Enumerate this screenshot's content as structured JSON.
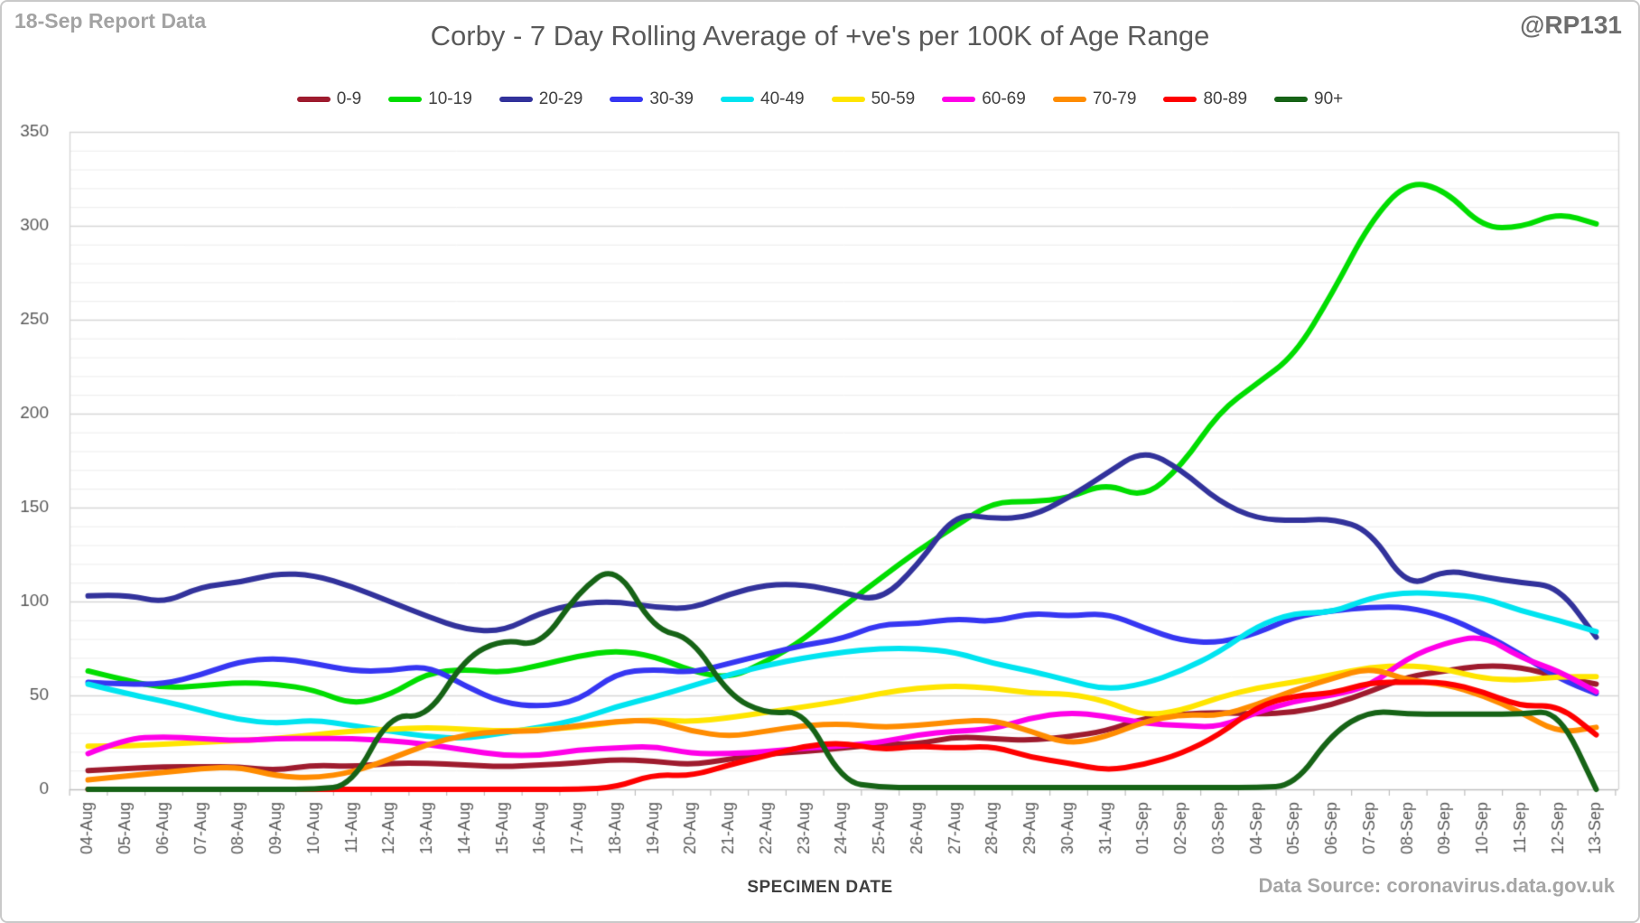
{
  "header": {
    "report_note": "18-Sep Report Data",
    "title": "Corby - 7 Day Rolling Average of +ve's per 100K of Age Range",
    "handle": "@RP131"
  },
  "footer": {
    "xaxis_title": "SPECIMEN DATE",
    "data_source": "Data Source: coronavirus.data.gov.uk"
  },
  "chart_data": {
    "type": "line",
    "title": "Corby - 7 Day Rolling Average of +ve's per 100K of Age Range",
    "xlabel": "SPECIMEN DATE",
    "ylabel": "",
    "ylim": [
      0,
      350
    ],
    "ytick_step": 50,
    "minor_grid_step": 10,
    "grid": true,
    "legend_position": "top",
    "categories": [
      "04-Aug",
      "05-Aug",
      "06-Aug",
      "07-Aug",
      "08-Aug",
      "09-Aug",
      "10-Aug",
      "11-Aug",
      "12-Aug",
      "13-Aug",
      "14-Aug",
      "15-Aug",
      "16-Aug",
      "17-Aug",
      "18-Aug",
      "19-Aug",
      "20-Aug",
      "21-Aug",
      "22-Aug",
      "23-Aug",
      "24-Aug",
      "25-Aug",
      "26-Aug",
      "27-Aug",
      "28-Aug",
      "29-Aug",
      "30-Aug",
      "31-Aug",
      "01-Sep",
      "02-Sep",
      "03-Sep",
      "04-Sep",
      "05-Sep",
      "06-Sep",
      "07-Sep",
      "08-Sep",
      "09-Sep",
      "10-Sep",
      "11-Sep",
      "12-Sep",
      "13-Sep"
    ],
    "series": [
      {
        "name": "0-9",
        "color": "#9e1b2e",
        "values": [
          10,
          11,
          12,
          12,
          12,
          10,
          13,
          12,
          14,
          14,
          13,
          12,
          13,
          14,
          16,
          15,
          13,
          16,
          19,
          20,
          22,
          24,
          24,
          28,
          27,
          26,
          28,
          31,
          38,
          40,
          41,
          40,
          41,
          45,
          52,
          60,
          63,
          66,
          65,
          60,
          56
        ]
      },
      {
        "name": "10-19",
        "color": "#00dd00",
        "values": [
          63,
          58,
          54,
          55,
          57,
          56,
          53,
          45,
          50,
          62,
          64,
          62,
          66,
          71,
          74,
          71,
          63,
          59,
          68,
          80,
          97,
          112,
          127,
          140,
          153,
          153,
          155,
          163,
          155,
          172,
          201,
          216,
          231,
          264,
          302,
          324,
          319,
          299,
          299,
          307,
          301
        ]
      },
      {
        "name": "20-29",
        "color": "#32329b",
        "values": [
          103,
          104,
          99,
          108,
          110,
          115,
          114,
          108,
          100,
          92,
          85,
          84,
          94,
          99,
          100,
          97,
          96,
          104,
          109,
          109,
          105,
          100,
          119,
          147,
          144,
          145,
          155,
          168,
          181,
          170,
          153,
          144,
          143,
          144,
          138,
          107,
          117,
          113,
          110,
          108,
          81
        ]
      },
      {
        "name": "30-39",
        "color": "#3636f2",
        "values": [
          57,
          56,
          56,
          61,
          68,
          70,
          67,
          63,
          63,
          66,
          55,
          46,
          44,
          47,
          62,
          64,
          62,
          67,
          72,
          77,
          80,
          88,
          88,
          91,
          89,
          94,
          92,
          94,
          86,
          79,
          78,
          83,
          92,
          95,
          97,
          97,
          92,
          83,
          72,
          59,
          51
        ]
      },
      {
        "name": "40-49",
        "color": "#00e4f0",
        "values": [
          56,
          51,
          47,
          42,
          37,
          35,
          37,
          34,
          31,
          28,
          27,
          30,
          33,
          37,
          44,
          49,
          55,
          61,
          66,
          70,
          73,
          75,
          75,
          73,
          67,
          63,
          58,
          53,
          56,
          63,
          73,
          87,
          94,
          94,
          102,
          105,
          104,
          102,
          95,
          90,
          84
        ]
      },
      {
        "name": "50-59",
        "color": "#ffe500",
        "values": [
          23,
          23,
          24,
          25,
          26,
          27,
          29,
          31,
          32,
          33,
          32,
          31,
          32,
          33,
          36,
          37,
          36,
          38,
          41,
          44,
          47,
          51,
          54,
          55,
          54,
          51,
          51,
          47,
          39,
          42,
          49,
          54,
          57,
          61,
          65,
          66,
          64,
          59,
          58,
          60,
          60
        ]
      },
      {
        "name": "60-69",
        "color": "#ff00e8",
        "values": [
          19,
          27,
          28,
          27,
          26,
          27,
          27,
          27,
          26,
          24,
          21,
          18,
          18,
          21,
          22,
          23,
          19,
          19,
          20,
          22,
          23,
          25,
          29,
          31,
          32,
          38,
          41,
          39,
          35,
          34,
          33,
          41,
          47,
          50,
          55,
          70,
          78,
          82,
          70,
          63,
          52
        ]
      },
      {
        "name": "70-79",
        "color": "#ff8c00",
        "values": [
          5,
          7,
          9,
          11,
          12,
          7,
          6,
          9,
          16,
          24,
          29,
          31,
          31,
          34,
          36,
          37,
          31,
          28,
          31,
          34,
          35,
          33,
          34,
          36,
          37,
          31,
          24,
          28,
          36,
          40,
          39,
          45,
          53,
          59,
          65,
          58,
          56,
          50,
          41,
          30,
          33
        ]
      },
      {
        "name": "80-89",
        "color": "#fe0000",
        "values": [
          0,
          0,
          0,
          0,
          0,
          0,
          0,
          0,
          0,
          0,
          0,
          0,
          0,
          0,
          1,
          8,
          7,
          13,
          18,
          23,
          25,
          21,
          23,
          22,
          23,
          17,
          14,
          10,
          13,
          19,
          29,
          44,
          50,
          51,
          57,
          57,
          57,
          52,
          44,
          45,
          29
        ]
      },
      {
        "name": "90+",
        "color": "#166316",
        "values": [
          0,
          0,
          0,
          0,
          0,
          0,
          0,
          2,
          40,
          38,
          70,
          80,
          76,
          105,
          120,
          85,
          81,
          50,
          40,
          42,
          4,
          1,
          1,
          1,
          1,
          1,
          1,
          1,
          1,
          1,
          1,
          1,
          2,
          30,
          42,
          40,
          40,
          40,
          40,
          42,
          0
        ]
      }
    ]
  },
  "axis_style": {
    "tick_label_color": "#595959",
    "grid_minor_color": "#ececec",
    "grid_major_color": "#d6d6d6",
    "axis_line_color": "#bfbfbf"
  }
}
